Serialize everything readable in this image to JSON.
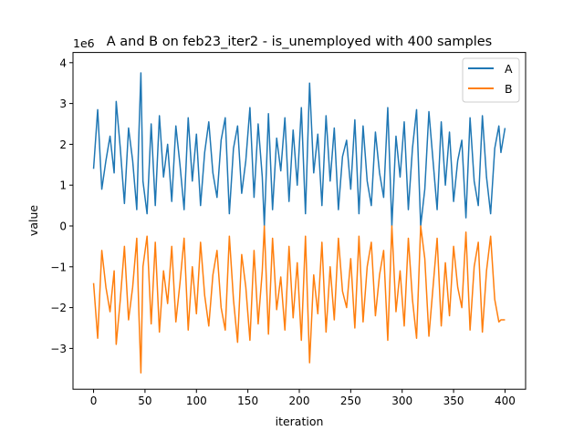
{
  "chart_data": {
    "type": "line",
    "title": "A and B on feb23_iter2 - is_unemployed with 400 samples",
    "xlabel": "iteration",
    "ylabel": "value",
    "y_offset_label": "1e6",
    "xlim": [
      -20,
      420
    ],
    "ylim": [
      -4.0,
      4.25
    ],
    "x_ticks": [
      0,
      50,
      100,
      150,
      200,
      250,
      300,
      350,
      400
    ],
    "y_ticks": [
      -3,
      -2,
      -1,
      0,
      1,
      2,
      3,
      4
    ],
    "y_scale_note": "values in units of 1e6",
    "legend": {
      "position": "top-right",
      "entries": [
        "A",
        "B"
      ]
    },
    "grid": false,
    "series_colors": {
      "A": "#1f77b4",
      "B": "#ff7f0e"
    },
    "series": [
      {
        "name": "A",
        "x": [
          0,
          4,
          8,
          12,
          16,
          20,
          22,
          26,
          30,
          34,
          38,
          42,
          44,
          46,
          48,
          52,
          56,
          60,
          64,
          68,
          72,
          76,
          80,
          84,
          88,
          92,
          96,
          100,
          104,
          108,
          112,
          116,
          120,
          124,
          128,
          132,
          136,
          140,
          144,
          148,
          152,
          156,
          160,
          164,
          166,
          170,
          174,
          178,
          182,
          186,
          190,
          194,
          198,
          202,
          206,
          210,
          214,
          218,
          222,
          226,
          230,
          234,
          238,
          242,
          246,
          250,
          254,
          258,
          262,
          266,
          270,
          274,
          278,
          282,
          286,
          290,
          294,
          298,
          302,
          306,
          310,
          314,
          318,
          322,
          326,
          330,
          334,
          338,
          342,
          346,
          350,
          354,
          358,
          362,
          366,
          370,
          374,
          378,
          382,
          386,
          390,
          394,
          396,
          400
        ],
        "values": [
          1.4,
          2.85,
          0.9,
          1.6,
          2.2,
          1.3,
          3.05,
          1.9,
          0.55,
          2.4,
          1.6,
          0.4,
          2.2,
          3.75,
          1.1,
          0.3,
          2.5,
          0.5,
          2.7,
          1.2,
          2.0,
          0.6,
          2.45,
          1.5,
          0.4,
          2.65,
          1.1,
          2.25,
          0.5,
          1.8,
          2.55,
          1.3,
          0.7,
          2.1,
          2.65,
          0.3,
          1.9,
          2.45,
          0.8,
          1.6,
          2.9,
          0.7,
          2.5,
          1.2,
          0.0,
          2.75,
          0.4,
          2.15,
          1.35,
          2.65,
          0.6,
          2.35,
          1.0,
          2.9,
          0.3,
          3.5,
          1.3,
          2.25,
          0.5,
          2.7,
          1.1,
          2.4,
          0.4,
          1.7,
          2.1,
          0.9,
          2.6,
          0.3,
          2.45,
          1.1,
          0.5,
          2.3,
          1.3,
          0.7,
          2.9,
          0.0,
          2.2,
          1.2,
          2.55,
          0.4,
          1.9,
          2.85,
          0.0,
          0.9,
          2.8,
          1.6,
          0.4,
          2.55,
          1.0,
          2.3,
          0.6,
          1.6,
          2.1,
          0.2,
          2.65,
          1.1,
          0.5,
          2.7,
          1.2,
          0.3,
          1.9,
          2.45,
          1.8,
          2.4
        ]
      },
      {
        "name": "B",
        "x": [
          0,
          4,
          8,
          12,
          16,
          20,
          22,
          26,
          30,
          34,
          38,
          42,
          44,
          46,
          48,
          52,
          56,
          60,
          64,
          68,
          72,
          76,
          80,
          84,
          88,
          92,
          96,
          100,
          104,
          108,
          112,
          116,
          120,
          124,
          128,
          132,
          136,
          140,
          144,
          148,
          152,
          156,
          160,
          164,
          166,
          170,
          174,
          178,
          182,
          186,
          190,
          194,
          198,
          202,
          206,
          210,
          214,
          218,
          222,
          226,
          230,
          234,
          238,
          242,
          246,
          250,
          254,
          258,
          262,
          266,
          270,
          274,
          278,
          282,
          286,
          290,
          294,
          298,
          302,
          306,
          310,
          314,
          318,
          322,
          326,
          330,
          334,
          338,
          342,
          346,
          350,
          354,
          358,
          362,
          366,
          370,
          374,
          378,
          382,
          386,
          390,
          394,
          396,
          400
        ],
        "values": [
          -1.4,
          -2.75,
          -0.6,
          -1.5,
          -2.1,
          -1.1,
          -2.9,
          -1.8,
          -0.5,
          -2.3,
          -1.5,
          -0.3,
          -2.1,
          -3.6,
          -1.0,
          -0.25,
          -2.4,
          -0.4,
          -2.6,
          -1.1,
          -1.9,
          -0.5,
          -2.35,
          -1.4,
          -0.3,
          -2.55,
          -1.0,
          -2.15,
          -0.4,
          -1.7,
          -2.45,
          -1.2,
          -0.6,
          -2.0,
          -2.55,
          -0.25,
          -1.8,
          -2.85,
          -0.7,
          -1.5,
          -2.8,
          -0.6,
          -2.4,
          -1.1,
          0.0,
          -2.65,
          -0.3,
          -2.05,
          -1.25,
          -2.55,
          -0.5,
          -2.25,
          -0.9,
          -2.8,
          -0.25,
          -3.35,
          -1.2,
          -2.15,
          -0.4,
          -2.6,
          -1.0,
          -2.3,
          -0.3,
          -1.6,
          -2.0,
          -0.8,
          -2.5,
          -0.25,
          -2.35,
          -1.0,
          -0.4,
          -2.2,
          -1.2,
          -0.6,
          -2.8,
          0.0,
          -2.1,
          -1.1,
          -2.45,
          -0.3,
          -1.8,
          -2.75,
          0.0,
          -0.8,
          -2.7,
          -1.5,
          -0.3,
          -2.45,
          -0.9,
          -2.2,
          -0.5,
          -1.5,
          -2.0,
          -0.15,
          -2.55,
          -1.0,
          -0.4,
          -2.6,
          -1.1,
          -0.25,
          -1.8,
          -2.35,
          -2.3,
          -2.3
        ]
      }
    ]
  }
}
